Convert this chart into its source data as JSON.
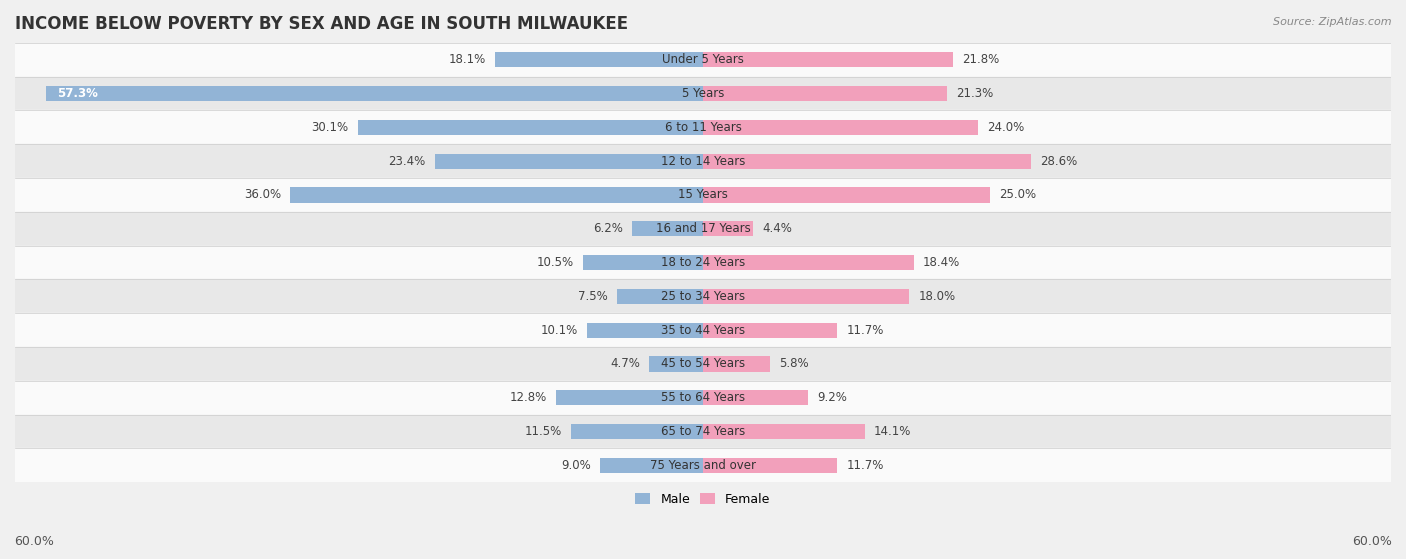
{
  "title": "INCOME BELOW POVERTY BY SEX AND AGE IN SOUTH MILWAUKEE",
  "source": "Source: ZipAtlas.com",
  "categories": [
    "Under 5 Years",
    "5 Years",
    "6 to 11 Years",
    "12 to 14 Years",
    "15 Years",
    "16 and 17 Years",
    "18 to 24 Years",
    "25 to 34 Years",
    "35 to 44 Years",
    "45 to 54 Years",
    "55 to 64 Years",
    "65 to 74 Years",
    "75 Years and over"
  ],
  "male": [
    18.1,
    57.3,
    30.1,
    23.4,
    36.0,
    6.2,
    10.5,
    7.5,
    10.1,
    4.7,
    12.8,
    11.5,
    9.0
  ],
  "female": [
    21.8,
    21.3,
    24.0,
    28.6,
    25.0,
    4.4,
    18.4,
    18.0,
    11.7,
    5.8,
    9.2,
    14.1,
    11.7
  ],
  "male_color": "#92b4d6",
  "female_color": "#f2a0bb",
  "background_color": "#f0f0f0",
  "row_color_light": "#fafafa",
  "row_color_dark": "#e8e8e8",
  "axis_limit": 60.0,
  "title_fontsize": 12,
  "label_fontsize": 8.5,
  "tick_fontsize": 9,
  "source_fontsize": 8
}
